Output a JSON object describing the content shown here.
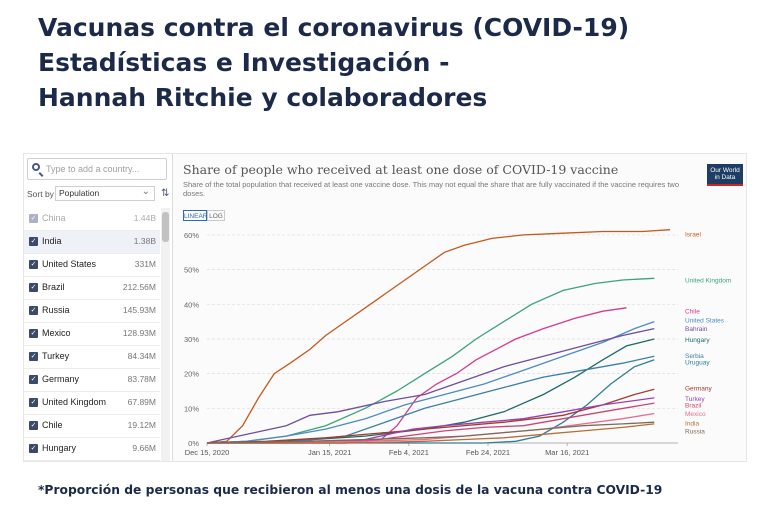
{
  "page": {
    "title_lines": [
      "Vacunas contra el coronavirus (COVID-19)",
      "Estadísticas e Investigación -",
      "Hannah Ritchie y colaboradores"
    ],
    "footnote": "*Proporción de personas que recibieron al menos una dosis de la vacuna contra COVID-19"
  },
  "sidebar": {
    "search_placeholder": "Type to add a country...",
    "sort_label": "Sort by",
    "sort_value": "Population",
    "countries": [
      {
        "name": "China",
        "pop": "1.44B",
        "checked": false
      },
      {
        "name": "India",
        "pop": "1.38B",
        "checked": true
      },
      {
        "name": "United States",
        "pop": "331M",
        "checked": true
      },
      {
        "name": "Brazil",
        "pop": "212.56M",
        "checked": true
      },
      {
        "name": "Russia",
        "pop": "145.93M",
        "checked": true
      },
      {
        "name": "Mexico",
        "pop": "128.93M",
        "checked": true
      },
      {
        "name": "Turkey",
        "pop": "84.34M",
        "checked": true
      },
      {
        "name": "Germany",
        "pop": "83.78M",
        "checked": true
      },
      {
        "name": "United Kingdom",
        "pop": "67.89M",
        "checked": true
      },
      {
        "name": "Chile",
        "pop": "19.12M",
        "checked": true
      },
      {
        "name": "Hungary",
        "pop": "9.66M",
        "checked": true
      }
    ]
  },
  "toolbar": {
    "linear_label": "LINEAR",
    "log_label": "LOG"
  },
  "logo": {
    "text_1": "Our World",
    "text_2": "in Data"
  },
  "chart_data": {
    "type": "line",
    "title": "Share of people who received at least one dose of COVID-19 vaccine",
    "subtitle": "Share of the total population that received at least one vaccine dose. This may not equal the share that are fully vaccinated if the vaccine requires two doses.",
    "x_tick_labels": [
      "Dec 15, 2020",
      "Jan 15, 2021",
      "Feb 4, 2021",
      "Feb 24, 2021",
      "Mar 16, 2021"
    ],
    "x_tick_days": [
      0,
      31,
      51,
      71,
      91
    ],
    "xlim_days": [
      0,
      119
    ],
    "yticks": [
      0,
      10,
      20,
      30,
      40,
      50,
      60
    ],
    "ylim": [
      0,
      62
    ],
    "y_unit": "%",
    "grid": true,
    "series": [
      {
        "name": "Israel",
        "color": "#c8571c",
        "points": [
          [
            0,
            0
          ],
          [
            5,
            0.5
          ],
          [
            9,
            5
          ],
          [
            13,
            13
          ],
          [
            17,
            20
          ],
          [
            21,
            23
          ],
          [
            26,
            27
          ],
          [
            30,
            31
          ],
          [
            35,
            35
          ],
          [
            40,
            39
          ],
          [
            45,
            43
          ],
          [
            50,
            47
          ],
          [
            55,
            51
          ],
          [
            60,
            55
          ],
          [
            65,
            57
          ],
          [
            72,
            59
          ],
          [
            80,
            60
          ],
          [
            90,
            60.5
          ],
          [
            100,
            61
          ],
          [
            110,
            61
          ],
          [
            117,
            61.5
          ]
        ]
      },
      {
        "name": "United Kingdom",
        "color": "#3aa37a",
        "points": [
          [
            0,
            0
          ],
          [
            10,
            0.5
          ],
          [
            20,
            2
          ],
          [
            30,
            5
          ],
          [
            40,
            10
          ],
          [
            48,
            15
          ],
          [
            55,
            20
          ],
          [
            62,
            25
          ],
          [
            68,
            30
          ],
          [
            75,
            35
          ],
          [
            82,
            40
          ],
          [
            90,
            44
          ],
          [
            98,
            46
          ],
          [
            105,
            47
          ],
          [
            113,
            47.5
          ]
        ]
      },
      {
        "name": "Chile",
        "color": "#d6398f",
        "points": [
          [
            0,
            0
          ],
          [
            30,
            0.5
          ],
          [
            44,
            1
          ],
          [
            48,
            5
          ],
          [
            53,
            13
          ],
          [
            58,
            17
          ],
          [
            63,
            20
          ],
          [
            68,
            24
          ],
          [
            73,
            27
          ],
          [
            78,
            30
          ],
          [
            85,
            33
          ],
          [
            93,
            36
          ],
          [
            100,
            38
          ],
          [
            106,
            39
          ]
        ]
      },
      {
        "name": "United States",
        "color": "#4b8cc2",
        "points": [
          [
            0,
            0
          ],
          [
            10,
            0.5
          ],
          [
            20,
            2
          ],
          [
            30,
            4
          ],
          [
            40,
            7
          ],
          [
            50,
            11
          ],
          [
            60,
            14
          ],
          [
            70,
            17
          ],
          [
            80,
            21
          ],
          [
            90,
            25
          ],
          [
            100,
            29
          ],
          [
            108,
            33
          ],
          [
            113,
            35
          ]
        ]
      },
      {
        "name": "Bahrain",
        "color": "#6f4ea1",
        "points": [
          [
            0,
            0
          ],
          [
            4,
            1
          ],
          [
            12,
            3
          ],
          [
            20,
            5
          ],
          [
            26,
            8
          ],
          [
            33,
            9
          ],
          [
            45,
            12
          ],
          [
            55,
            14
          ],
          [
            65,
            18
          ],
          [
            75,
            22
          ],
          [
            85,
            25
          ],
          [
            95,
            28
          ],
          [
            105,
            31
          ],
          [
            113,
            33
          ]
        ]
      },
      {
        "name": "Hungary",
        "color": "#1f6b6b",
        "points": [
          [
            0,
            0
          ],
          [
            20,
            0.5
          ],
          [
            40,
            2
          ],
          [
            55,
            4
          ],
          [
            65,
            6
          ],
          [
            75,
            9
          ],
          [
            85,
            14
          ],
          [
            93,
            19
          ],
          [
            100,
            24
          ],
          [
            106,
            28
          ],
          [
            113,
            30
          ]
        ]
      },
      {
        "name": "Serbia",
        "color": "#3c7fa8",
        "points": [
          [
            0,
            0
          ],
          [
            20,
            0.3
          ],
          [
            35,
            2
          ],
          [
            45,
            6
          ],
          [
            55,
            10
          ],
          [
            65,
            13
          ],
          [
            75,
            16
          ],
          [
            85,
            19
          ],
          [
            95,
            21
          ],
          [
            105,
            23
          ],
          [
            113,
            25
          ]
        ]
      },
      {
        "name": "Uruguay",
        "color": "#2f7f9a",
        "points": [
          [
            0,
            0
          ],
          [
            70,
            0
          ],
          [
            78,
            0.5
          ],
          [
            84,
            2
          ],
          [
            90,
            6
          ],
          [
            96,
            11
          ],
          [
            102,
            17
          ],
          [
            108,
            22
          ],
          [
            113,
            24
          ]
        ]
      },
      {
        "name": "Germany",
        "color": "#a33a2b",
        "points": [
          [
            0,
            0
          ],
          [
            15,
            0.5
          ],
          [
            30,
            1.5
          ],
          [
            45,
            3
          ],
          [
            60,
            4.5
          ],
          [
            75,
            6
          ],
          [
            90,
            8
          ],
          [
            100,
            11
          ],
          [
            108,
            14
          ],
          [
            113,
            15.5
          ]
        ]
      },
      {
        "name": "Turkey",
        "color": "#9a3fb5",
        "points": [
          [
            0,
            0
          ],
          [
            35,
            0
          ],
          [
            40,
            1
          ],
          [
            46,
            2.5
          ],
          [
            52,
            4
          ],
          [
            60,
            5
          ],
          [
            70,
            6
          ],
          [
            80,
            7
          ],
          [
            90,
            9
          ],
          [
            100,
            11
          ],
          [
            113,
            13
          ]
        ]
      },
      {
        "name": "Brazil",
        "color": "#c8457a",
        "points": [
          [
            0,
            0
          ],
          [
            35,
            0
          ],
          [
            40,
            0.5
          ],
          [
            50,
            2
          ],
          [
            60,
            3.5
          ],
          [
            70,
            4.5
          ],
          [
            80,
            5
          ],
          [
            90,
            7
          ],
          [
            100,
            9
          ],
          [
            113,
            11.5
          ]
        ]
      },
      {
        "name": "Mexico",
        "color": "#e26e8c",
        "points": [
          [
            0,
            0
          ],
          [
            15,
            0
          ],
          [
            25,
            0.3
          ],
          [
            40,
            0.5
          ],
          [
            55,
            1
          ],
          [
            65,
            2
          ],
          [
            75,
            3
          ],
          [
            85,
            4
          ],
          [
            95,
            5.5
          ],
          [
            105,
            7
          ],
          [
            113,
            8.5
          ]
        ]
      },
      {
        "name": "India",
        "color": "#b76d3c",
        "points": [
          [
            0,
            0
          ],
          [
            35,
            0
          ],
          [
            45,
            0.2
          ],
          [
            55,
            0.5
          ],
          [
            65,
            1
          ],
          [
            75,
            1.5
          ],
          [
            85,
            2.5
          ],
          [
            95,
            3.5
          ],
          [
            105,
            4.5
          ],
          [
            113,
            5.5
          ]
        ]
      },
      {
        "name": "Russia",
        "color": "#7d6a5b",
        "points": [
          [
            0,
            0
          ],
          [
            10,
            0.2
          ],
          [
            25,
            0.5
          ],
          [
            40,
            1
          ],
          [
            55,
            1.5
          ],
          [
            65,
            2
          ],
          [
            75,
            3
          ],
          [
            85,
            4
          ],
          [
            95,
            5
          ],
          [
            105,
            5.5
          ],
          [
            113,
            6
          ]
        ]
      }
    ],
    "series_labels": [
      {
        "name": "Israel",
        "y_label_pos": 60.2
      },
      {
        "name": "United Kingdom",
        "y_label_pos": 47
      },
      {
        "name": "Chile",
        "y_label_pos": 38
      },
      {
        "name": "United States",
        "y_label_pos": 35.5
      },
      {
        "name": "Bahrain",
        "y_label_pos": 33
      },
      {
        "name": "Hungary",
        "y_label_pos": 29.8
      },
      {
        "name": "Serbia",
        "y_label_pos": 25.3
      },
      {
        "name": "Uruguay",
        "y_label_pos": 23.3
      },
      {
        "name": "Germany",
        "y_label_pos": 15.8
      },
      {
        "name": "Turkey",
        "y_label_pos": 12.8
      },
      {
        "name": "Brazil",
        "y_label_pos": 11
      },
      {
        "name": "Mexico",
        "y_label_pos": 8.5
      },
      {
        "name": "India",
        "y_label_pos": 5.8
      },
      {
        "name": "Russia",
        "y_label_pos": 3.5
      }
    ]
  }
}
